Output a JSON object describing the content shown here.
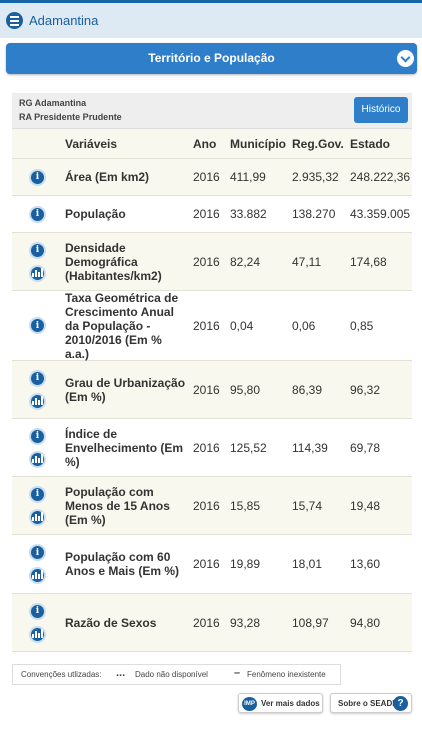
{
  "topbar": {
    "title": "Adamantina"
  },
  "section": {
    "label": "Território e População"
  },
  "region": {
    "rg": "RG Adamantina",
    "ra": "RA Presidente Prudente",
    "history_button": "Histórico"
  },
  "table": {
    "headers": [
      "Variáveis",
      "Ano",
      "Município",
      "Reg.Gov.",
      "Estado"
    ],
    "rows": [
      {
        "variable": "Área (Em km2)",
        "year": "2016",
        "municipio": "411,99",
        "reg_gov": "2.935,32",
        "estado": "248.222,36",
        "icons": [
          "info-icon"
        ]
      },
      {
        "variable": "População",
        "year": "2016",
        "municipio": "33.882",
        "reg_gov": "138.270",
        "estado": "43.359.005",
        "icons": [
          "info-icon"
        ]
      },
      {
        "variable": "Densidade Demográfica (Habitantes/km2)",
        "year": "2016",
        "municipio": "82,24",
        "reg_gov": "47,11",
        "estado": "174,68",
        "icons": [
          "info-icon",
          "chart-icon"
        ]
      },
      {
        "variable": "Taxa Geométrica de Crescimento Anual da População - 2010/2016 (Em % a.a.)",
        "year": "2016",
        "municipio": "0,04",
        "reg_gov": "0,06",
        "estado": "0,85",
        "icons": [
          "info-icon"
        ]
      },
      {
        "variable": "Grau de Urbanização (Em %)",
        "year": "2016",
        "municipio": "95,80",
        "reg_gov": "86,39",
        "estado": "96,32",
        "icons": [
          "info-icon",
          "chart-icon"
        ]
      },
      {
        "variable": "Índice de Envelhecimento (Em %)",
        "year": "2016",
        "municipio": "125,52",
        "reg_gov": "114,39",
        "estado": "69,78",
        "icons": [
          "info-icon",
          "chart-icon"
        ]
      },
      {
        "variable": "População com Menos de 15 Anos (Em %)",
        "year": "2016",
        "municipio": "15,85",
        "reg_gov": "15,74",
        "estado": "19,48",
        "icons": [
          "info-icon",
          "chart-icon"
        ]
      },
      {
        "variable": "População com 60 Anos e Mais (Em %)",
        "year": "2016",
        "municipio": "19,89",
        "reg_gov": "18,01",
        "estado": "13,60",
        "icons": [
          "info-icon",
          "chart-icon"
        ]
      },
      {
        "variable": "Razão de Sexos",
        "year": "2016",
        "municipio": "93,28",
        "reg_gov": "108,97",
        "estado": "94,80",
        "icons": [
          "info-icon",
          "chart-icon"
        ]
      }
    ]
  },
  "conventions": {
    "label": "Convenções utlizadas:",
    "unavailable_symbol": "...",
    "unavailable_text": "Dado não disponível",
    "nonexistent_symbol": "–",
    "nonexistent_text": "Fenômeno inexistente"
  },
  "footer": {
    "more_data_icon": "IMP",
    "more_data": "Ver mais dados",
    "about": "Sobre o SEADE",
    "about_icon": "?"
  },
  "colors": {
    "primary": "#2f7ec9",
    "dark_blue": "#1a5fa0",
    "topbar_bg": "#dde9f3",
    "row_alt": "#f8f8ee"
  }
}
